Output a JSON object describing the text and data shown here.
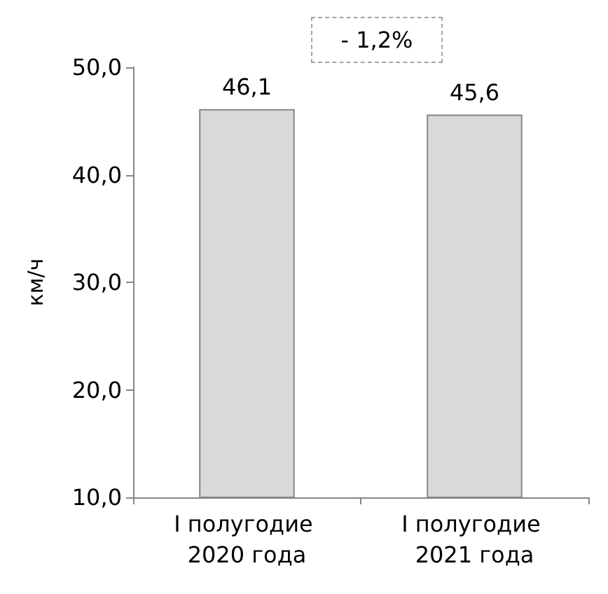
{
  "chart_data": {
    "type": "bar",
    "ylabel": "км/ч",
    "categories": [
      "I полугодие 2020 года",
      "I полугодие 2021 года"
    ],
    "values": [
      46.1,
      45.6
    ],
    "color": "#d9d9d9",
    "value_labels": [
      "46,1",
      "45,6"
    ],
    "ylim": [
      10,
      50
    ],
    "yticks": [
      {
        "value": 10,
        "label": "10,0"
      },
      {
        "value": 20,
        "label": "20,0"
      },
      {
        "value": 30,
        "label": "30,0"
      },
      {
        "value": 40,
        "label": "40,0"
      },
      {
        "value": 50,
        "label": "50,0"
      }
    ],
    "grid": false,
    "annotations": [
      "- 1,2%"
    ]
  }
}
